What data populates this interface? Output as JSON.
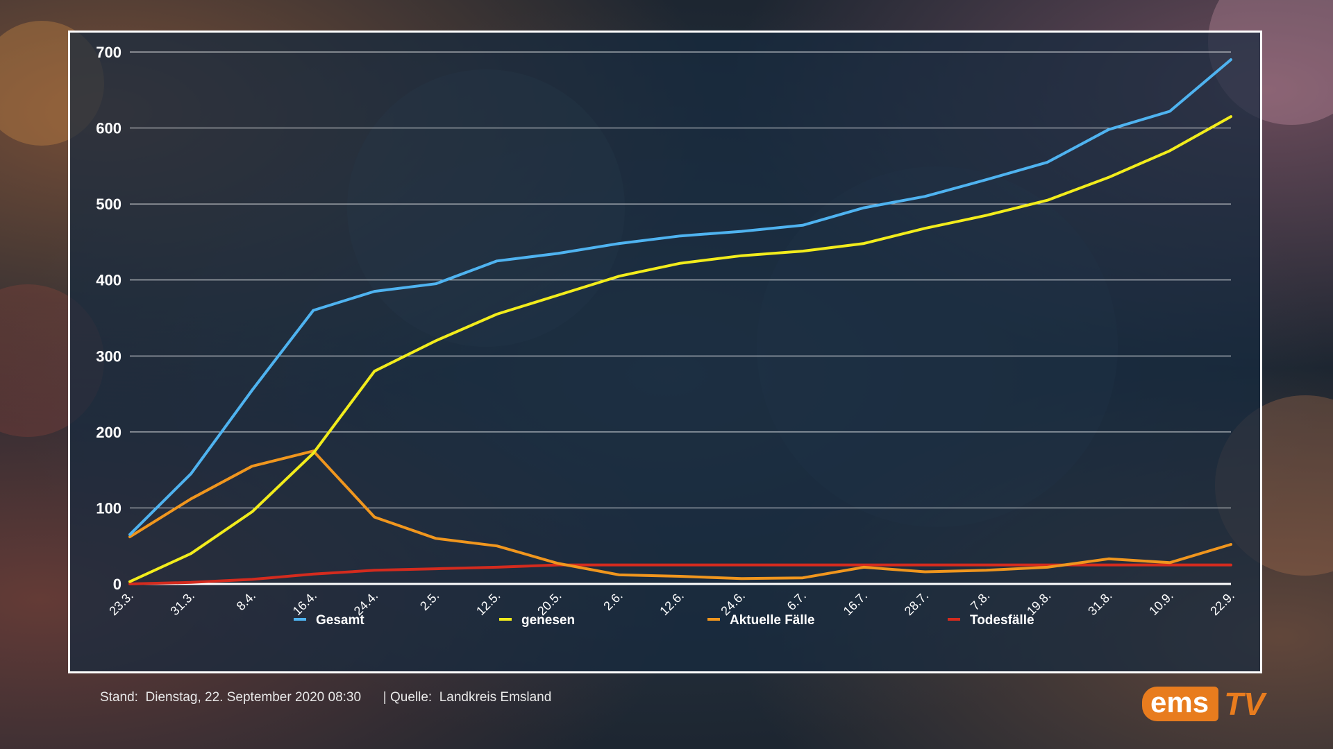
{
  "chart_data": {
    "type": "line",
    "title": "",
    "xlabel": "",
    "ylabel": "",
    "ylim": [
      0,
      700
    ],
    "yticks": [
      0,
      100,
      200,
      300,
      400,
      500,
      600,
      700
    ],
    "categories": [
      "23.3.",
      "31.3.",
      "8.4.",
      "16.4.",
      "24.4.",
      "2.5.",
      "12.5.",
      "20.5.",
      "2.6.",
      "12.6.",
      "24.6.",
      "6.7.",
      "16.7.",
      "28.7.",
      "7.8.",
      "19.8.",
      "31.8.",
      "10.9.",
      "22.9."
    ],
    "grid": true,
    "legend_position": "bottom",
    "series": [
      {
        "name": "Gesamt",
        "color": "#4fb3f0",
        "values": [
          65,
          145,
          255,
          360,
          385,
          395,
          425,
          435,
          448,
          458,
          464,
          472,
          495,
          510,
          532,
          555,
          598,
          622,
          690
        ]
      },
      {
        "name": "genesen",
        "color": "#f2ec1c",
        "values": [
          3,
          40,
          95,
          172,
          280,
          320,
          355,
          380,
          405,
          422,
          432,
          438,
          448,
          468,
          485,
          505,
          535,
          570,
          615
        ]
      },
      {
        "name": "Aktuelle Fälle",
        "color": "#f0961e",
        "values": [
          62,
          112,
          155,
          175,
          88,
          60,
          50,
          27,
          12,
          10,
          7,
          8,
          22,
          16,
          18,
          22,
          33,
          28,
          52
        ]
      },
      {
        "name": "Todesfälle",
        "color": "#d42b1e",
        "values": [
          0,
          2,
          6,
          13,
          18,
          20,
          22,
          25,
          25,
          25,
          25,
          25,
          25,
          25,
          25,
          25,
          25,
          25,
          25
        ]
      }
    ]
  },
  "footer": {
    "stand_label": "Stand:",
    "stand_value": "Dienstag, 22. September 2020 08:30",
    "separator": "|",
    "source_label": "Quelle:",
    "source_value": "Landkreis Emsland"
  },
  "logo": {
    "part1": "ems",
    "part2": "TV"
  }
}
